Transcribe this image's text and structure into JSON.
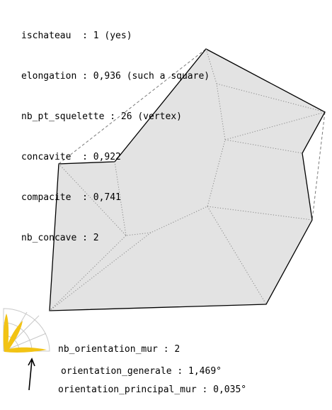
{
  "stats": [
    {
      "key": "ischateau",
      "text": "ischateau  : 1 (yes)"
    },
    {
      "key": "elongation",
      "text": "elongation : 0,936 (such a square)"
    },
    {
      "key": "nb_pt_squelette",
      "text": "nb_pt_squelette : 26 (vertex)"
    },
    {
      "key": "concavite",
      "text": "concavite  : 0,922"
    },
    {
      "key": "compacite",
      "text": "compacite  : 0,741"
    },
    {
      "key": "nb_concave",
      "text": "nb_concave : 2"
    }
  ],
  "wall": [
    {
      "key": "nb_orientation_mur",
      "text": "nb_orientation_mur : 2"
    },
    {
      "key": "orientation_principal_mur",
      "text": "orientation_principal_mur : 0,035°"
    }
  ],
  "general": {
    "text": "orientation_generale : 1,469°"
  },
  "colors": {
    "polygon_fill": "#e3e3e3",
    "polygon_stroke": "#000000",
    "skeleton": "#8a8a8a",
    "hull": "#7a7a7a",
    "petal": "#f2c314",
    "rose_grid": "#c8c8c8"
  },
  "icons": {
    "north_arrow": "north-arrow-icon",
    "orientation_rose": "orientation-rose-icon"
  }
}
